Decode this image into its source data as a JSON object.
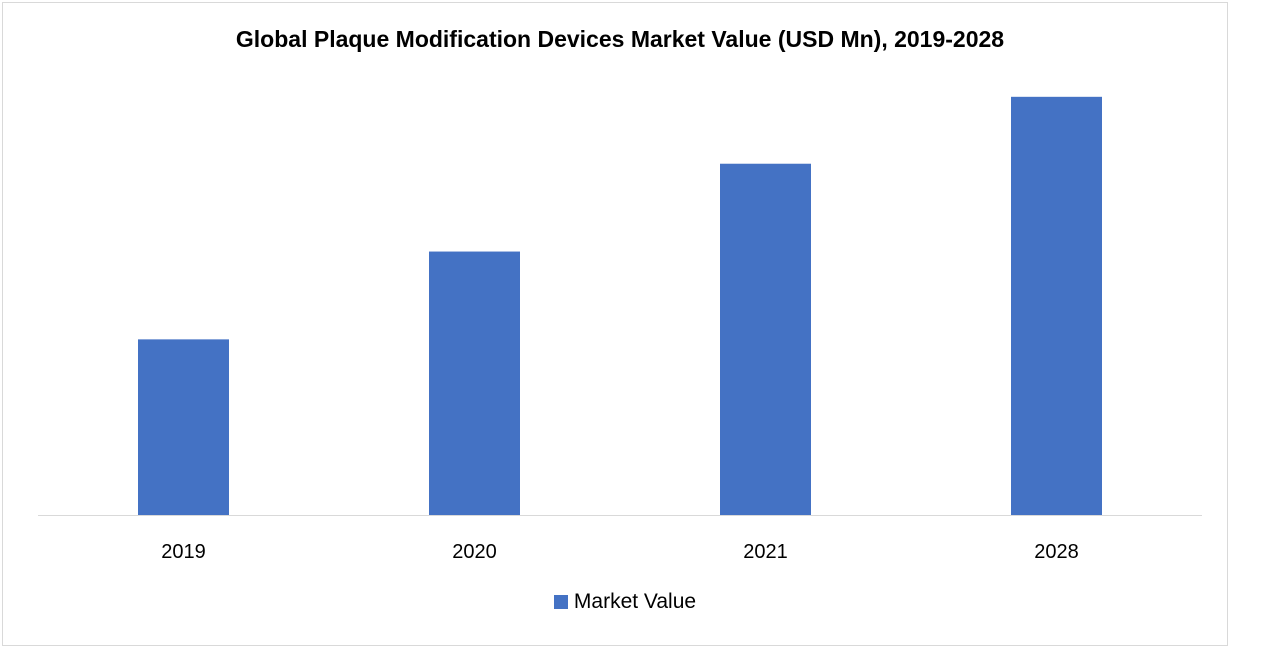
{
  "chart_data": {
    "type": "bar",
    "title": "Global Plaque Modification Devices Market Value (USD Mn), 2019-2028",
    "categories": [
      "2019",
      "2020",
      "2021",
      "2028"
    ],
    "series": [
      {
        "name": "Market Value",
        "values": [
          42,
          63,
          84,
          100
        ]
      }
    ],
    "xlabel": "",
    "ylabel": "",
    "ylim": [
      0,
      110
    ],
    "grid": false,
    "legend_position": "bottom",
    "colors": {
      "bar": "#4472c4",
      "axis": "#d9d9d9",
      "frame": "#d9d9d9"
    }
  }
}
